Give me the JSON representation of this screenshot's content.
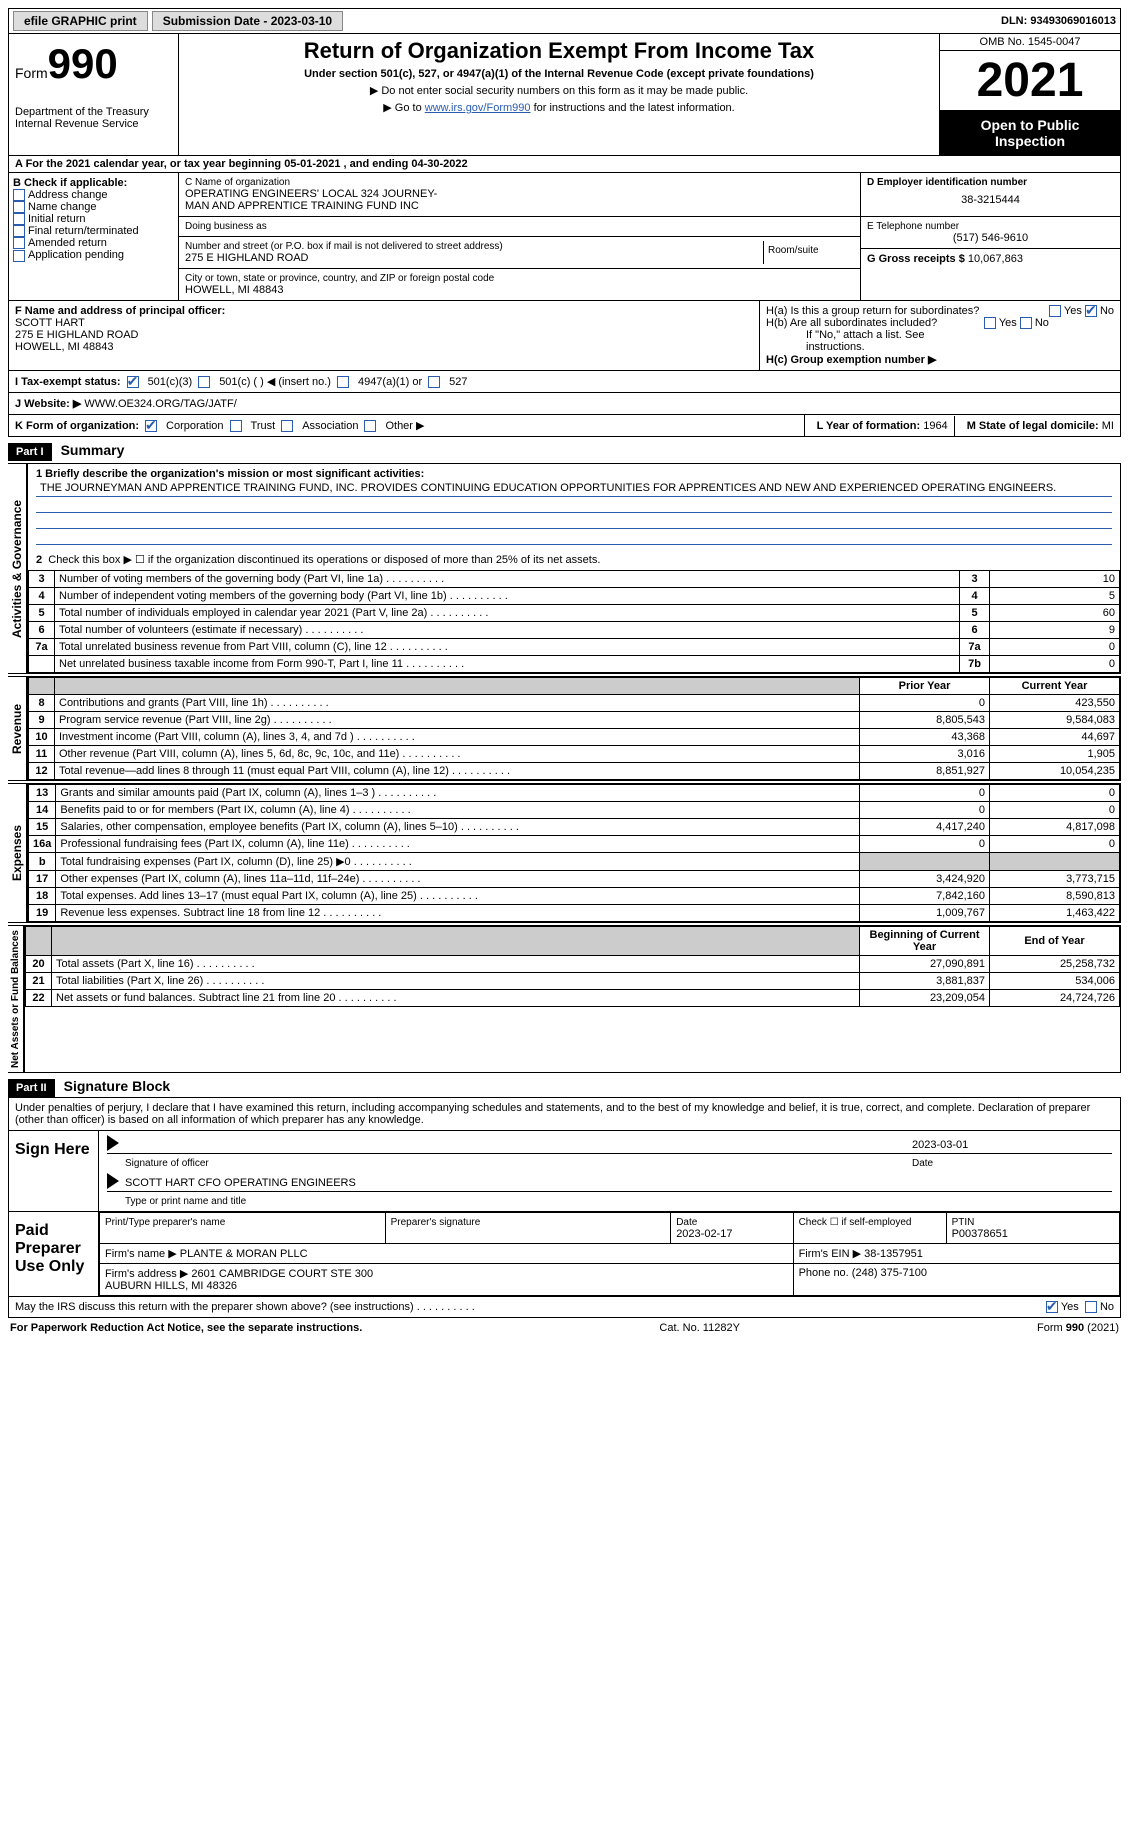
{
  "topbar": {
    "efile": "efile GRAPHIC print",
    "submission_label": "Submission Date - 2023-03-10",
    "dln_label": "DLN: 93493069016013"
  },
  "header": {
    "form_word": "Form",
    "form_num": "990",
    "dept": "Department of the Treasury",
    "irs": "Internal Revenue Service",
    "title": "Return of Organization Exempt From Income Tax",
    "subtitle": "Under section 501(c), 527, or 4947(a)(1) of the Internal Revenue Code (except private foundations)",
    "nossn": "▶ Do not enter social security numbers on this form as it may be made public.",
    "goto_pre": "▶ Go to ",
    "goto_link": "www.irs.gov/Form990",
    "goto_post": " for instructions and the latest information.",
    "omb": "OMB No. 1545-0047",
    "year": "2021",
    "inspect": "Open to Public Inspection"
  },
  "a_line": "A For the 2021 calendar year, or tax year beginning 05-01-2021    , and ending 04-30-2022",
  "b": {
    "label": "B Check if applicable:",
    "opts": [
      "Address change",
      "Name change",
      "Initial return",
      "Final return/terminated",
      "Amended return",
      "Application pending"
    ]
  },
  "c": {
    "name_label": "C Name of organization",
    "name": "OPERATING ENGINEERS' LOCAL 324 JOURNEY-\nMAN AND APPRENTICE TRAINING FUND INC",
    "dba_label": "Doing business as",
    "street_label": "Number and street (or P.O. box if mail is not delivered to street address)",
    "street": "275 E HIGHLAND ROAD",
    "room_label": "Room/suite",
    "city_label": "City or town, state or province, country, and ZIP or foreign postal code",
    "city": "HOWELL, MI  48843"
  },
  "d": {
    "label": "D Employer identification number",
    "value": "38-3215444"
  },
  "e": {
    "label": "E Telephone number",
    "value": "(517) 546-9610"
  },
  "g": {
    "label": "G Gross receipts $ ",
    "value": "10,067,863"
  },
  "f": {
    "label": "F  Name and address of principal officer:",
    "name": "SCOTT HART",
    "street": "275 E HIGHLAND ROAD",
    "city": "HOWELL, MI  48843"
  },
  "h": {
    "a": "H(a)  Is this a group return for subordinates?",
    "b": "H(b)  Are all subordinates included?",
    "note": "If \"No,\" attach a list. See instructions.",
    "c": "H(c)  Group exemption number ▶",
    "yes": "Yes",
    "no": "No"
  },
  "i": {
    "label": "I    Tax-exempt status:",
    "o501c3": "501(c)(3)",
    "o501c": "501(c) (   ) ◀ (insert no.)",
    "o4947": "4947(a)(1) or",
    "o527": "527"
  },
  "j": {
    "label": "J   Website: ▶",
    "value": "WWW.OE324.ORG/TAG/JATF/"
  },
  "k": {
    "label": "K Form of organization:",
    "corp": "Corporation",
    "trust": "Trust",
    "assoc": "Association",
    "other": "Other ▶"
  },
  "l": {
    "label": "L Year of formation: ",
    "value": "1964"
  },
  "m": {
    "label": "M State of legal domicile: ",
    "value": "MI"
  },
  "part1": {
    "hdr": "Part I",
    "title": "Summary",
    "q1_label": "1   Briefly describe the organization's mission or most significant activities:",
    "mission": "THE JOURNEYMAN AND APPRENTICE TRAINING FUND, INC. PROVIDES CONTINUING EDUCATION OPPORTUNITIES FOR APPRENTICES AND NEW AND EXPERIENCED OPERATING ENGINEERS.",
    "q2": "Check this box ▶ ☐  if the organization discontinued its operations or disposed of more than 25% of its net assets.",
    "rows_gov": [
      {
        "n": "3",
        "d": "Number of voting members of the governing body (Part VI, line 1a)",
        "box": "3",
        "v": "10"
      },
      {
        "n": "4",
        "d": "Number of independent voting members of the governing body (Part VI, line 1b)",
        "box": "4",
        "v": "5"
      },
      {
        "n": "5",
        "d": "Total number of individuals employed in calendar year 2021 (Part V, line 2a)",
        "box": "5",
        "v": "60"
      },
      {
        "n": "6",
        "d": "Total number of volunteers (estimate if necessary)",
        "box": "6",
        "v": "9"
      },
      {
        "n": "7a",
        "d": "Total unrelated business revenue from Part VIII, column (C), line 12",
        "box": "7a",
        "v": "0"
      },
      {
        "n": "",
        "d": "Net unrelated business taxable income from Form 990-T, Part I, line 11",
        "box": "7b",
        "v": "0"
      }
    ],
    "hdr_prior": "Prior Year",
    "hdr_curr": "Current Year",
    "rows_rev": [
      {
        "n": "8",
        "d": "Contributions and grants (Part VIII, line 1h)",
        "p": "0",
        "c": "423,550"
      },
      {
        "n": "9",
        "d": "Program service revenue (Part VIII, line 2g)",
        "p": "8,805,543",
        "c": "9,584,083"
      },
      {
        "n": "10",
        "d": "Investment income (Part VIII, column (A), lines 3, 4, and 7d )",
        "p": "43,368",
        "c": "44,697"
      },
      {
        "n": "11",
        "d": "Other revenue (Part VIII, column (A), lines 5, 6d, 8c, 9c, 10c, and 11e)",
        "p": "3,016",
        "c": "1,905"
      },
      {
        "n": "12",
        "d": "Total revenue—add lines 8 through 11 (must equal Part VIII, column (A), line 12)",
        "p": "8,851,927",
        "c": "10,054,235"
      }
    ],
    "rows_exp": [
      {
        "n": "13",
        "d": "Grants and similar amounts paid (Part IX, column (A), lines 1–3 )",
        "p": "0",
        "c": "0"
      },
      {
        "n": "14",
        "d": "Benefits paid to or for members (Part IX, column (A), line 4)",
        "p": "0",
        "c": "0"
      },
      {
        "n": "15",
        "d": "Salaries, other compensation, employee benefits (Part IX, column (A), lines 5–10)",
        "p": "4,417,240",
        "c": "4,817,098"
      },
      {
        "n": "16a",
        "d": "Professional fundraising fees (Part IX, column (A), line 11e)",
        "p": "0",
        "c": "0"
      },
      {
        "n": "b",
        "d": "Total fundraising expenses (Part IX, column (D), line 25) ▶0",
        "p": "shade",
        "c": "shade"
      },
      {
        "n": "17",
        "d": "Other expenses (Part IX, column (A), lines 11a–11d, 11f–24e)",
        "p": "3,424,920",
        "c": "3,773,715"
      },
      {
        "n": "18",
        "d": "Total expenses. Add lines 13–17 (must equal Part IX, column (A), line 25)",
        "p": "7,842,160",
        "c": "8,590,813"
      },
      {
        "n": "19",
        "d": "Revenue less expenses. Subtract line 18 from line 12",
        "p": "1,009,767",
        "c": "1,463,422"
      }
    ],
    "hdr_begin": "Beginning of Current Year",
    "hdr_end": "End of Year",
    "rows_net": [
      {
        "n": "20",
        "d": "Total assets (Part X, line 16)",
        "p": "27,090,891",
        "c": "25,258,732"
      },
      {
        "n": "21",
        "d": "Total liabilities (Part X, line 26)",
        "p": "3,881,837",
        "c": "534,006"
      },
      {
        "n": "22",
        "d": "Net assets or fund balances. Subtract line 21 from line 20",
        "p": "23,209,054",
        "c": "24,724,726"
      }
    ],
    "tab_gov": "Activities & Governance",
    "tab_rev": "Revenue",
    "tab_exp": "Expenses",
    "tab_net": "Net Assets or Fund Balances"
  },
  "part2": {
    "hdr": "Part II",
    "title": "Signature Block",
    "penalty": "Under penalties of perjury, I declare that I have examined this return, including accompanying schedules and statements, and to the best of my knowledge and belief, it is true, correct, and complete. Declaration of preparer (other than officer) is based on all information of which preparer has any knowledge.",
    "sign_here": "Sign Here",
    "sig_officer": "Signature of officer",
    "sig_date_val": "2023-03-01",
    "sig_date": "Date",
    "officer_name": "SCOTT HART CFO OPERATING ENGINEERS",
    "type_name": "Type or print name and title",
    "paid": "Paid Preparer Use Only",
    "prep_name_lbl": "Print/Type preparer's name",
    "prep_sig_lbl": "Preparer's signature",
    "date_lbl": "Date",
    "date_val": "2023-02-17",
    "check_self": "Check ☐ if self-employed",
    "ptin_lbl": "PTIN",
    "ptin": "P00378651",
    "firm_name_lbl": "Firm's name    ▶",
    "firm_name": "PLANTE & MORAN PLLC",
    "firm_ein_lbl": "Firm's EIN ▶",
    "firm_ein": "38-1357951",
    "firm_addr_lbl": "Firm's address ▶",
    "firm_addr": "2601 CAMBRIDGE COURT STE 300\nAUBURN HILLS, MI  48326",
    "phone_lbl": "Phone no. ",
    "phone": "(248) 375-7100",
    "may": "May the IRS discuss this return with the preparer shown above? (see instructions)",
    "yes": "Yes",
    "no": "No"
  },
  "footer": {
    "pra": "For Paperwork Reduction Act Notice, see the separate instructions.",
    "cat": "Cat. No. 11282Y",
    "form": "Form 990 (2021)"
  }
}
